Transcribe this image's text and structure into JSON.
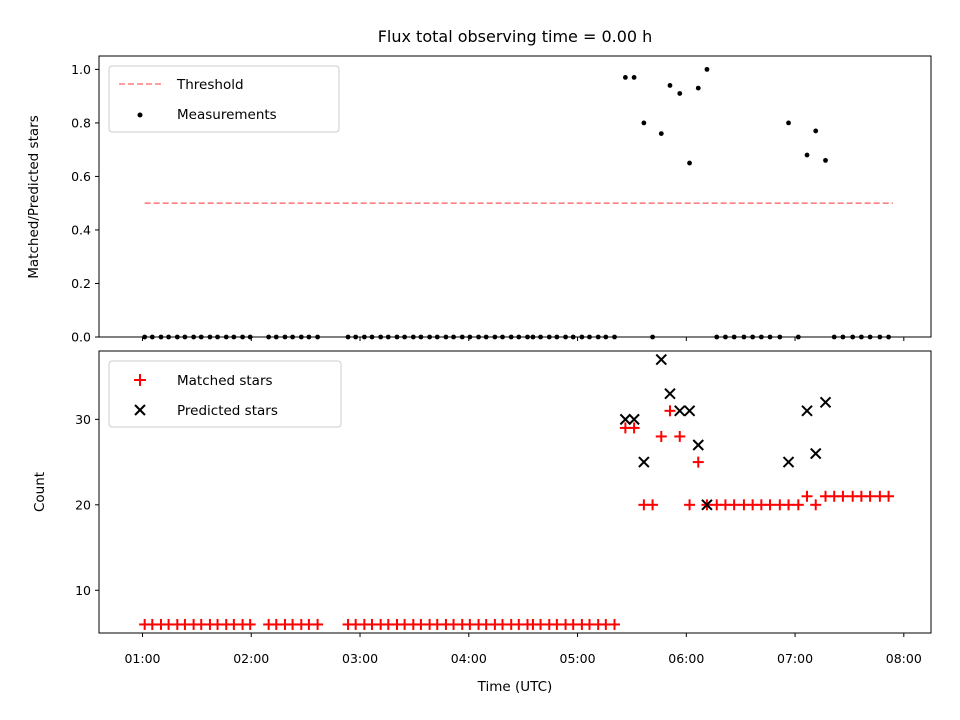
{
  "chart_data": {
    "type": "scatter",
    "title": "Flux total observing time = 0.00 h",
    "xlabel": "Time (UTC)",
    "x_ticks": [
      "01:00",
      "02:00",
      "03:00",
      "04:00",
      "05:00",
      "06:00",
      "07:00",
      "08:00"
    ],
    "x_range_hours": [
      0.6,
      8.25
    ],
    "panels": [
      {
        "ylabel": "Matched/Predicted stars",
        "ylim": [
          0,
          1.05
        ],
        "y_ticks": [
          "0.0",
          "0.2",
          "0.4",
          "0.6",
          "0.8",
          "1.0"
        ],
        "y_tick_values": [
          0,
          0.2,
          0.4,
          0.6,
          0.8,
          1.0
        ],
        "legend_position": "upper left",
        "threshold": {
          "name": "Threshold",
          "value": 0.5,
          "x_start": 1.02,
          "x_end": 7.9,
          "color": "#ff7f7f"
        },
        "measurements": {
          "name": "Measurements",
          "color": "#000000",
          "x": [
            1.02,
            1.09,
            1.17,
            1.24,
            1.32,
            1.39,
            1.47,
            1.54,
            1.62,
            1.69,
            1.77,
            1.84,
            1.92,
            1.99,
            2.16,
            2.23,
            2.31,
            2.38,
            2.46,
            2.53,
            2.61,
            2.89,
            2.96,
            3.04,
            3.11,
            3.19,
            3.26,
            3.34,
            3.41,
            3.49,
            3.56,
            3.64,
            3.71,
            3.79,
            3.86,
            3.94,
            4.01,
            4.09,
            4.16,
            4.24,
            4.31,
            4.39,
            4.46,
            4.54,
            4.59,
            4.66,
            4.74,
            4.81,
            4.89,
            4.96,
            5.04,
            5.11,
            5.19,
            5.26,
            5.34,
            5.44,
            5.52,
            5.61,
            5.69,
            5.77,
            5.85,
            5.94,
            6.03,
            6.11,
            6.19,
            6.28,
            6.36,
            6.44,
            6.53,
            6.61,
            6.69,
            6.77,
            6.86,
            6.94,
            7.03,
            7.11,
            7.19,
            7.28,
            7.36,
            7.44,
            7.53,
            7.61,
            7.69,
            7.78,
            7.86
          ],
          "y": [
            0,
            0,
            0,
            0,
            0,
            0,
            0,
            0,
            0,
            0,
            0,
            0,
            0,
            0,
            0,
            0,
            0,
            0,
            0,
            0,
            0,
            0,
            0,
            0,
            0,
            0,
            0,
            0,
            0,
            0,
            0,
            0,
            0,
            0,
            0,
            0,
            0,
            0,
            0,
            0,
            0,
            0,
            0,
            0,
            0,
            0,
            0,
            0,
            0,
            0,
            0,
            0,
            0,
            0,
            0,
            0.97,
            0.97,
            0.8,
            0,
            0.76,
            0.94,
            0.91,
            0.65,
            0.93,
            1.0,
            0,
            0,
            0,
            0,
            0,
            0,
            0,
            0,
            0.8,
            0,
            0.68,
            0.77,
            0.66,
            0,
            0,
            0,
            0,
            0,
            0,
            0
          ]
        }
      },
      {
        "ylabel": "Count",
        "ylim": [
          5,
          38
        ],
        "y_ticks": [
          "10",
          "20",
          "30"
        ],
        "y_tick_values": [
          10,
          20,
          30
        ],
        "legend_position": "upper left",
        "matched": {
          "name": "Matched stars",
          "color": "#ff0000",
          "x": [
            1.02,
            1.09,
            1.17,
            1.24,
            1.32,
            1.39,
            1.47,
            1.54,
            1.62,
            1.69,
            1.77,
            1.84,
            1.92,
            1.99,
            2.16,
            2.23,
            2.31,
            2.38,
            2.46,
            2.53,
            2.61,
            2.89,
            2.96,
            3.04,
            3.11,
            3.19,
            3.26,
            3.34,
            3.41,
            3.49,
            3.56,
            3.64,
            3.71,
            3.79,
            3.86,
            3.94,
            4.01,
            4.09,
            4.16,
            4.24,
            4.31,
            4.39,
            4.46,
            4.54,
            4.59,
            4.66,
            4.74,
            4.81,
            4.89,
            4.96,
            5.04,
            5.11,
            5.19,
            5.26,
            5.34,
            5.44,
            5.52,
            5.61,
            5.69,
            5.77,
            5.85,
            5.94,
            6.03,
            6.11,
            6.19,
            6.28,
            6.36,
            6.44,
            6.53,
            6.61,
            6.69,
            6.77,
            6.86,
            6.94,
            7.03,
            7.11,
            7.19,
            7.28,
            7.36,
            7.44,
            7.53,
            7.61,
            7.69,
            7.78,
            7.86
          ],
          "y": [
            6,
            6,
            6,
            6,
            6,
            6,
            6,
            6,
            6,
            6,
            6,
            6,
            6,
            6,
            6,
            6,
            6,
            6,
            6,
            6,
            6,
            6,
            6,
            6,
            6,
            6,
            6,
            6,
            6,
            6,
            6,
            6,
            6,
            6,
            6,
            6,
            6,
            6,
            6,
            6,
            6,
            6,
            6,
            6,
            6,
            6,
            6,
            6,
            6,
            6,
            6,
            6,
            6,
            6,
            6,
            29,
            29,
            20,
            20,
            28,
            31,
            28,
            20,
            25,
            20,
            20,
            20,
            20,
            20,
            20,
            20,
            20,
            20,
            20,
            20,
            21,
            20,
            21,
            21,
            21,
            21,
            21,
            21,
            21,
            21
          ]
        },
        "predicted": {
          "name": "Predicted stars",
          "color": "#000000",
          "x": [
            5.44,
            5.52,
            5.61,
            5.77,
            5.85,
            5.94,
            6.03,
            6.11,
            6.19,
            6.94,
            7.11,
            7.19,
            7.28
          ],
          "y": [
            30,
            30,
            25,
            37,
            33,
            31,
            31,
            27,
            20,
            25,
            31,
            26,
            32
          ]
        }
      }
    ]
  }
}
